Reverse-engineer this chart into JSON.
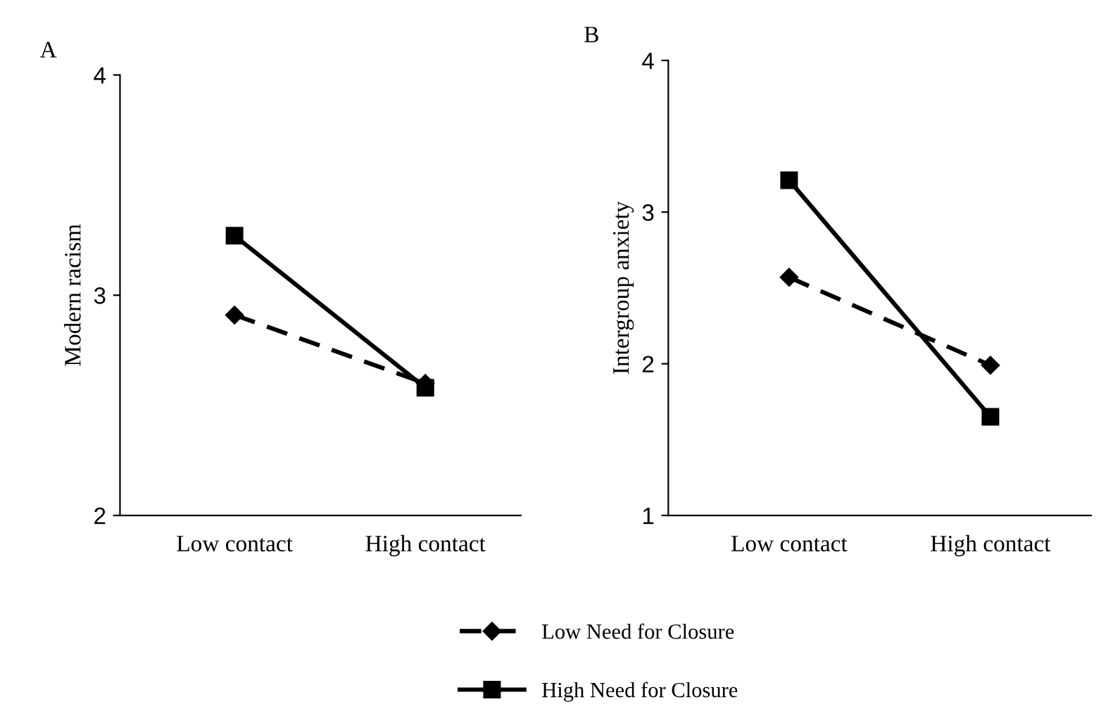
{
  "chart_data": [
    {
      "type": "line",
      "title": "A",
      "ylabel": "Modern racism",
      "categories": [
        "Low contact",
        "High contact"
      ],
      "ylim": [
        2,
        4
      ],
      "yticks": [
        2,
        3,
        4
      ],
      "grid": false,
      "legend": "bottom",
      "series": [
        {
          "name": "Low Need for Closure",
          "color": "#000000",
          "marker": "diamond",
          "line_style": "dashed",
          "values": [
            2.91,
            2.6
          ]
        },
        {
          "name": "High Need for Closure",
          "color": "#000000",
          "marker": "square",
          "line_style": "solid",
          "values": [
            3.27,
            2.58
          ]
        }
      ]
    },
    {
      "type": "line",
      "title": "B",
      "ylabel": "Intergroup anxiety",
      "categories": [
        "Low contact",
        "High contact"
      ],
      "ylim": [
        1,
        4
      ],
      "yticks": [
        1,
        2,
        3,
        4
      ],
      "grid": false,
      "series": [
        {
          "color": "#000000",
          "marker": "diamond",
          "line_style": "dashed",
          "values": [
            2.57,
            1.99
          ]
        },
        {
          "color": "#000000",
          "marker": "square",
          "line_style": "solid",
          "values": [
            3.21,
            1.65
          ]
        }
      ]
    }
  ]
}
